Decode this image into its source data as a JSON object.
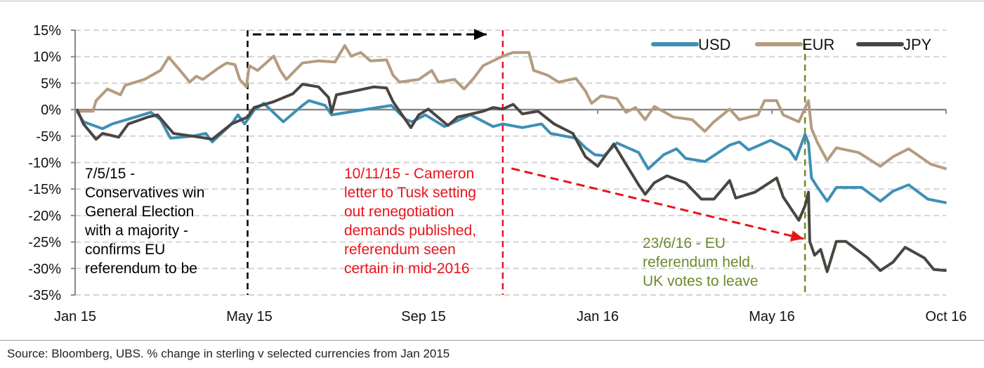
{
  "chart_data": {
    "type": "line",
    "title": "",
    "xlabel": "",
    "ylabel": "",
    "ylim": [
      -35,
      15
    ],
    "xlim": [
      0,
      20
    ],
    "y_ticks": [
      15,
      10,
      5,
      0,
      -5,
      -10,
      -15,
      -20,
      -25,
      -30,
      -35
    ],
    "y_tick_labels": [
      "15%",
      "10%",
      "5%",
      "0%",
      "-5%",
      "-10%",
      "-15%",
      "-20%",
      "-25%",
      "-30%",
      "-35%"
    ],
    "x_ticks": [
      0,
      4,
      8,
      12,
      16,
      20
    ],
    "x_tick_labels": [
      "Jan 15",
      "May 15",
      "Sep 15",
      "Jan 16",
      "May 16",
      "Oct 16"
    ],
    "grid": "horizontal dashed",
    "legend_position": "top-right",
    "series": [
      {
        "name": "USD",
        "color": "#3f8fb5",
        "x": [
          0.04,
          0.19,
          0.63,
          0.85,
          1.3,
          1.74,
          1.96,
          2.19,
          2.7,
          3.0,
          3.15,
          3.59,
          3.74,
          3.89,
          4.11,
          4.33,
          4.78,
          5.22,
          5.37,
          5.74,
          5.89,
          6.41,
          7.26,
          7.6,
          7.74,
          8.04,
          8.48,
          9.08,
          9.6,
          9.82,
          10.27,
          10.71,
          10.92,
          11.5,
          11.72,
          11.93,
          12.15,
          12.44,
          12.94,
          13.16,
          13.52,
          13.81,
          14.02,
          14.46,
          15.03,
          15.25,
          15.47,
          15.97,
          16.4,
          16.55,
          16.76,
          16.84,
          16.91,
          17.05,
          17.27,
          17.48,
          18.06,
          18.49,
          18.78,
          19.14,
          19.58,
          20.01
        ],
        "y": [
          -0.3,
          -2.3,
          -3.6,
          -2.7,
          -1.6,
          -0.5,
          -1.9,
          -5.4,
          -5.0,
          -4.5,
          -6.1,
          -2.7,
          -1.0,
          -2.7,
          -0.1,
          1.2,
          -2.3,
          0.8,
          1.7,
          0.8,
          -1.0,
          -0.3,
          0.8,
          -1.9,
          -2.3,
          -1.0,
          -3.2,
          -1.0,
          -3.2,
          -2.7,
          -3.4,
          -2.7,
          -4.5,
          -5.4,
          -7.2,
          -8.5,
          -8.7,
          -6.3,
          -8.1,
          -11.2,
          -8.5,
          -7.4,
          -9.2,
          -9.8,
          -6.7,
          -6.1,
          -7.6,
          -5.8,
          -7.6,
          -9.4,
          -4.7,
          -6.3,
          -12.9,
          -14.7,
          -17.3,
          -14.7,
          -14.7,
          -17.3,
          -15.4,
          -14.2,
          -16.9,
          -17.6
        ]
      },
      {
        "name": "EUR",
        "color": "#b59c80",
        "x": [
          0.04,
          0.41,
          0.48,
          0.74,
          1.04,
          1.15,
          1.59,
          1.96,
          2.15,
          2.41,
          2.63,
          2.78,
          2.93,
          3.3,
          3.48,
          3.67,
          3.78,
          3.93,
          4.0,
          4.19,
          4.56,
          4.71,
          4.85,
          5.22,
          5.59,
          5.97,
          6.19,
          6.34,
          6.56,
          6.78,
          7.15,
          7.3,
          7.45,
          7.89,
          8.19,
          8.34,
          8.71,
          8.93,
          9.15,
          9.37,
          9.82,
          10.06,
          10.42,
          10.53,
          10.85,
          11.1,
          11.5,
          11.72,
          11.86,
          12.08,
          12.44,
          12.65,
          12.87,
          13.09,
          13.3,
          13.74,
          14.17,
          14.46,
          14.67,
          15.03,
          15.25,
          15.68,
          15.83,
          16.11,
          16.26,
          16.62,
          16.84,
          16.91,
          17.05,
          17.27,
          17.48,
          17.99,
          18.49,
          18.78,
          19.14,
          19.65,
          20.01
        ],
        "y": [
          -0.3,
          -0.3,
          1.7,
          3.9,
          2.8,
          4.6,
          5.7,
          7.4,
          9.9,
          7.4,
          5.2,
          6.3,
          5.7,
          7.9,
          8.8,
          8.5,
          5.7,
          4.3,
          8.3,
          7.4,
          10.1,
          7.4,
          5.7,
          8.8,
          9.2,
          9.0,
          12.1,
          10.1,
          10.8,
          9.2,
          9.4,
          6.5,
          5.2,
          5.7,
          7.4,
          5.2,
          5.7,
          3.9,
          5.9,
          8.3,
          10.1,
          10.8,
          10.8,
          7.4,
          6.5,
          5.2,
          5.9,
          3.5,
          1.2,
          2.6,
          2.1,
          -0.5,
          0.4,
          -1.9,
          0.6,
          -1.4,
          -1.9,
          -4.1,
          -2.3,
          0.1,
          -1.9,
          -1.0,
          1.7,
          1.7,
          -1.0,
          -2.3,
          1.7,
          -3.6,
          -6.3,
          -9.6,
          -7.2,
          -8.1,
          -10.7,
          -8.9,
          -7.4,
          -10.3,
          -11.2
        ]
      },
      {
        "name": "JPY",
        "color": "#4a4540",
        "x": [
          0.04,
          0.19,
          0.48,
          0.63,
          1.0,
          1.22,
          1.67,
          1.89,
          2.26,
          2.7,
          3.15,
          3.59,
          3.96,
          4.11,
          4.56,
          5.0,
          5.22,
          5.59,
          5.82,
          5.89,
          6.0,
          6.41,
          6.86,
          7.15,
          7.3,
          7.71,
          7.89,
          8.11,
          8.56,
          8.78,
          9.37,
          9.6,
          9.82,
          10.06,
          10.27,
          10.63,
          11.0,
          11.43,
          11.72,
          12.0,
          12.37,
          12.65,
          12.94,
          13.09,
          13.3,
          13.59,
          14.02,
          14.38,
          14.67,
          15.03,
          15.17,
          15.61,
          16.11,
          16.26,
          16.62,
          16.76,
          16.84,
          16.87,
          16.98,
          17.12,
          17.27,
          17.48,
          17.7,
          18.2,
          18.49,
          18.78,
          19.06,
          19.5,
          19.72,
          20.01
        ],
        "y": [
          0.1,
          -2.7,
          -5.6,
          -4.5,
          -5.2,
          -2.7,
          -1.4,
          -1.0,
          -4.5,
          -5.0,
          -5.6,
          -2.7,
          -1.4,
          0.4,
          1.5,
          3.0,
          4.8,
          4.3,
          2.3,
          -0.5,
          2.8,
          3.5,
          4.3,
          4.1,
          1.5,
          -3.4,
          -1.0,
          0.1,
          -3.0,
          -1.4,
          -0.3,
          0.4,
          0.1,
          1.0,
          -0.8,
          -0.3,
          -2.7,
          -4.5,
          -8.9,
          -10.7,
          -6.5,
          -10.3,
          -14.2,
          -16.0,
          -13.8,
          -12.5,
          -13.8,
          -16.9,
          -16.9,
          -13.4,
          -16.7,
          -15.6,
          -12.9,
          -16.5,
          -20.9,
          -18.2,
          -15.6,
          -24.9,
          -27.5,
          -26.4,
          -30.6,
          -24.9,
          -24.9,
          -28.0,
          -30.4,
          -28.8,
          -26.0,
          -28.0,
          -30.2,
          -30.4
        ]
      }
    ],
    "event_lines": [
      {
        "x": 3.96,
        "color": "#000000"
      },
      {
        "x": 9.82,
        "color": "#e8141c"
      },
      {
        "x": 16.76,
        "color": "#6b8a2a"
      }
    ],
    "arrows": [
      {
        "from": [
          4.08,
          14.2
        ],
        "to": [
          9.45,
          14.2
        ],
        "color": "#000000"
      },
      {
        "from": [
          10.02,
          -11.1
        ],
        "to": [
          16.73,
          -24.4
        ],
        "color": "#e8141c"
      }
    ],
    "annotations": [
      {
        "color": "#000000",
        "lines": [
          "7/5/15 -",
          "Conservatives win",
          "General Election",
          "with a majority -",
          "confirms EU",
          "referendum to be"
        ]
      },
      {
        "color": "#e8141c",
        "lines": [
          "10/11/15 - Cameron",
          "letter to Tusk setting",
          "out renegotiation",
          "demands published,",
          "referendum seen",
          "certain in mid-2016"
        ]
      },
      {
        "color": "#6b8a2a",
        "lines": [
          "23/6/16 - EU",
          "referendum held,",
          "UK votes to leave"
        ]
      }
    ]
  },
  "source": "Source:  Bloomberg, UBS. % change in sterling v selected currencies from Jan 2015"
}
